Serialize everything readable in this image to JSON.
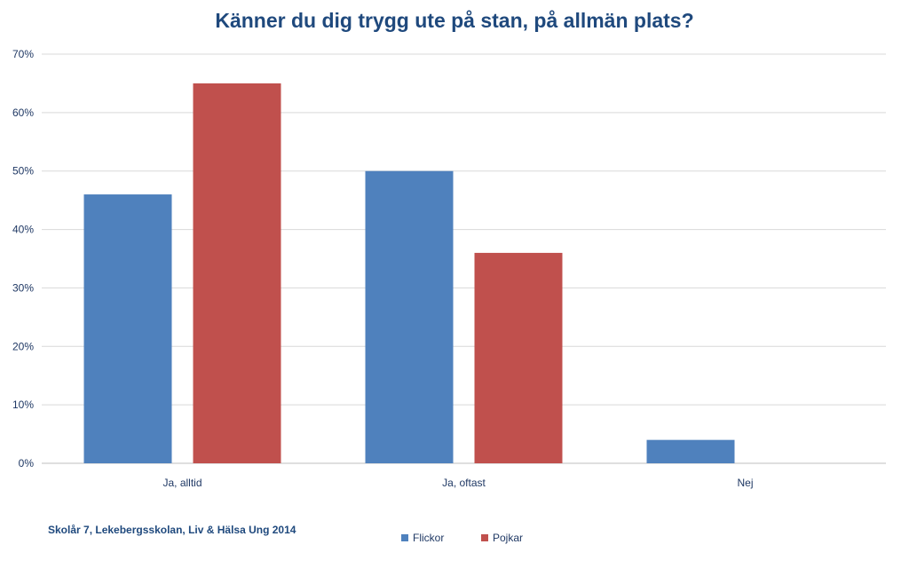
{
  "chart_data": {
    "type": "bar",
    "title": "Känner du dig trygg ute på stan, på allmän plats?",
    "categories": [
      "Ja, alltid",
      "Ja, oftast",
      "Nej"
    ],
    "series": [
      {
        "name": "Flickor",
        "values": [
          46,
          50,
          4
        ],
        "color": "#4f81bd"
      },
      {
        "name": "Pojkar",
        "values": [
          65,
          36,
          0
        ],
        "color": "#c0504d"
      }
    ],
    "ylim": [
      0,
      70
    ],
    "yticks": [
      0,
      10,
      20,
      30,
      40,
      50,
      60,
      70
    ],
    "ytick_labels": [
      "0%",
      "10%",
      "20%",
      "30%",
      "40%",
      "50%",
      "60%",
      "70%"
    ],
    "grid": true,
    "legend_position": "bottom"
  },
  "source_note": "Skolår 7, Lekebergsskolan, Liv & Hälsa Ung 2014",
  "legend": [
    {
      "label": "Flickor",
      "color": "#4f81bd"
    },
    {
      "label": "Pojkar",
      "color": "#c0504d"
    }
  ]
}
